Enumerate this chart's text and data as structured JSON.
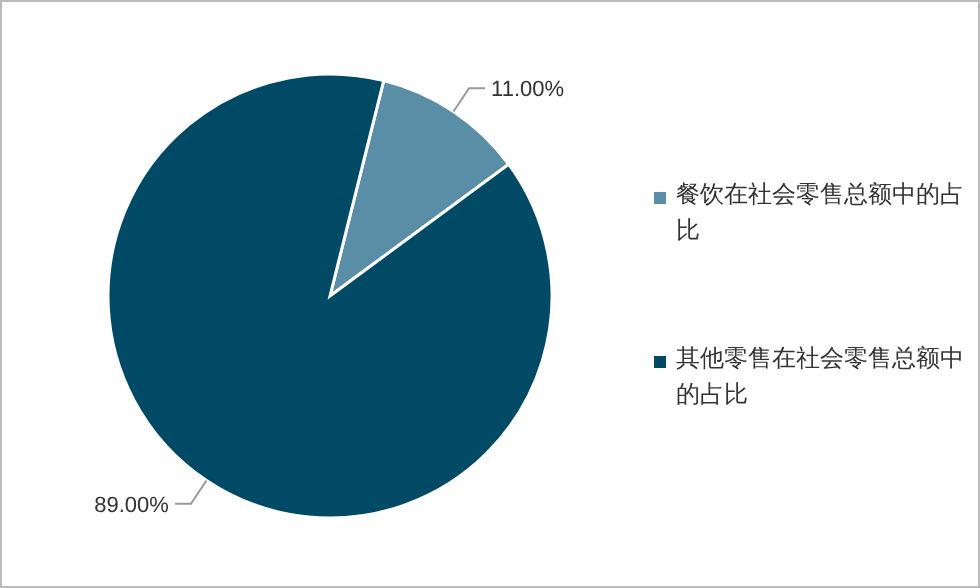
{
  "chart_data": {
    "type": "pie",
    "categories": [
      "餐饮在社会零售总额中的占比",
      "其他零售在社会零售总额中的占比"
    ],
    "values": [
      11,
      89
    ],
    "colors": [
      "#5a8ea6",
      "#004a66"
    ],
    "value_labels": [
      "11.00%",
      "89.00%"
    ],
    "legend": "right"
  }
}
